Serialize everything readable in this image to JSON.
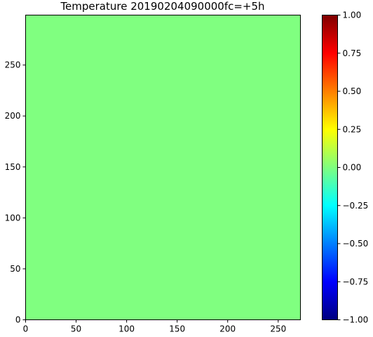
{
  "chart_data": {
    "type": "heatmap",
    "title": "Temperature 20190204090000fc=+5h",
    "xlabel": "",
    "ylabel": "",
    "xlim": [
      0,
      272
    ],
    "ylim": [
      0,
      299
    ],
    "x_ticks": [
      0,
      50,
      100,
      150,
      200,
      250
    ],
    "x_tick_labels": [
      "0",
      "50",
      "100",
      "150",
      "200",
      "250"
    ],
    "y_ticks": [
      0,
      50,
      100,
      150,
      200,
      250
    ],
    "y_tick_labels": [
      "0",
      "50",
      "100",
      "150",
      "200",
      "250"
    ],
    "field": {
      "value": 0.0,
      "uniform": true,
      "color": "#80ff80"
    },
    "colorbar": {
      "colormap": "jet",
      "vmin": -1.0,
      "vmax": 1.0,
      "ticks": [
        1.0,
        0.75,
        0.5,
        0.25,
        0.0,
        -0.25,
        -0.5,
        -0.75,
        -1.0
      ],
      "tick_labels": [
        "1.00",
        "0.75",
        "0.50",
        "0.25",
        "0.00",
        "−0.25",
        "−0.50",
        "−0.75",
        "−1.00"
      ],
      "stops": [
        "#00007f",
        "#0000ff",
        "#007fff",
        "#00ffff",
        "#7fff7f",
        "#ffff00",
        "#ff7f00",
        "#ff0000",
        "#7f0000"
      ]
    },
    "grid": false,
    "legend": "none"
  }
}
